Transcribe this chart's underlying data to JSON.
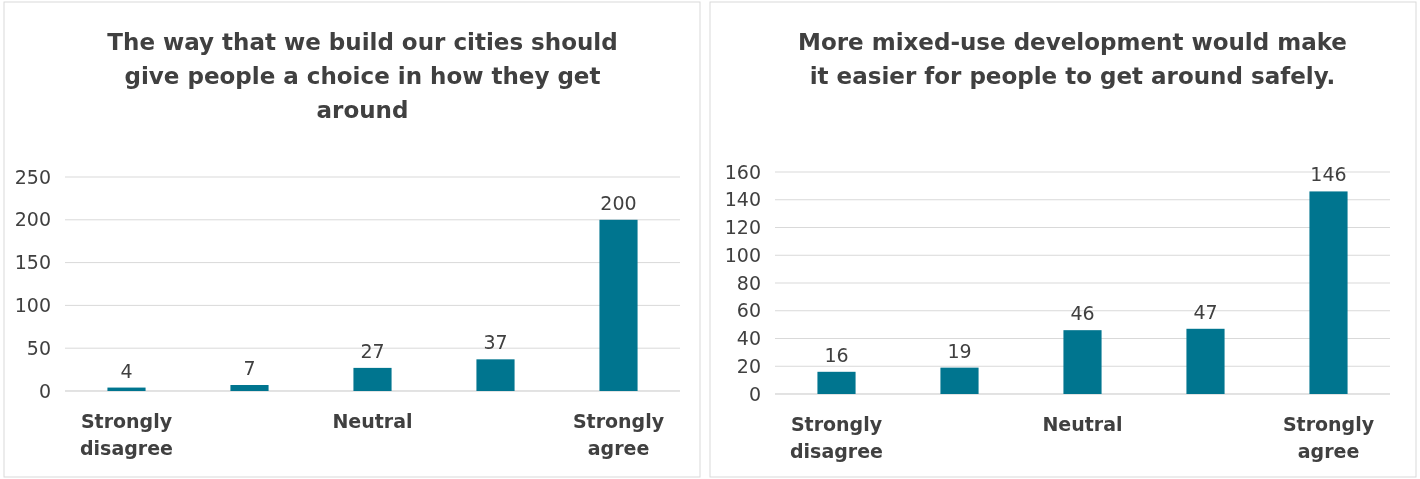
{
  "chart_data": [
    {
      "type": "bar",
      "title": "The way that we build our cities should give people a choice in how they get around",
      "categories": [
        "Strongly disagree",
        null,
        "Neutral",
        null,
        "Strongly agree"
      ],
      "values": [
        4,
        7,
        27,
        37,
        200
      ],
      "color": "#00758f",
      "ylim": [
        0,
        250
      ],
      "yticks": [
        0,
        50,
        100,
        150,
        200,
        250
      ],
      "grid": "y",
      "data_labels": true
    },
    {
      "type": "bar",
      "title": "More mixed-use development would make it easier for people to get around safely.",
      "categories": [
        "Strongly disagree",
        null,
        "Neutral",
        null,
        "Strongly agree"
      ],
      "values": [
        16,
        19,
        46,
        47,
        146
      ],
      "color": "#00758f",
      "ylim": [
        0,
        160
      ],
      "yticks": [
        0,
        20,
        40,
        60,
        80,
        100,
        120,
        140,
        160
      ],
      "grid": "y",
      "data_labels": true
    }
  ]
}
